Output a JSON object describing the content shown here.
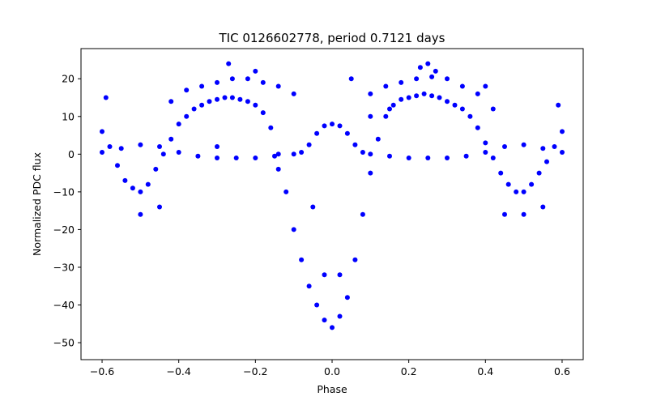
{
  "chart_data": {
    "type": "scatter",
    "title": "TIC 0126602778, period 0.7121 days",
    "xlabel": "Phase",
    "ylabel": "Normalized PDC flux",
    "xlim": [
      -0.655,
      0.655
    ],
    "ylim": [
      -54.5,
      28
    ],
    "xticks": [
      -0.6,
      -0.4,
      -0.2,
      0.0,
      0.2,
      0.4,
      0.6
    ],
    "xtick_labels": [
      "−0.6",
      "−0.4",
      "−0.2",
      "0.0",
      "0.2",
      "0.4",
      "0.6"
    ],
    "yticks": [
      20,
      10,
      0,
      -10,
      -20,
      -30,
      -40,
      -50
    ],
    "ytick_labels": [
      "20",
      "10",
      "0",
      "−10",
      "−20",
      "−30",
      "−40",
      "−50"
    ],
    "grid": false,
    "marker_color": "#0000ff",
    "series": [
      {
        "name": "",
        "x": [
          -0.6,
          -0.58,
          -0.56,
          -0.54,
          -0.52,
          -0.5,
          -0.48,
          -0.46,
          -0.44,
          -0.42,
          -0.4,
          -0.38,
          -0.36,
          -0.34,
          -0.32,
          -0.3,
          -0.28,
          -0.26,
          -0.24,
          -0.22,
          -0.2,
          -0.18,
          -0.16,
          -0.14,
          -0.12,
          -0.1,
          -0.08,
          -0.06,
          -0.04,
          -0.02,
          0.0,
          0.02,
          0.04,
          0.06,
          0.08,
          0.1,
          0.12,
          0.14,
          0.16,
          0.18,
          0.2,
          0.22,
          0.24,
          0.26,
          0.28,
          0.3,
          0.32,
          0.34,
          0.36,
          0.38,
          0.4,
          0.42,
          0.44,
          0.46,
          0.48,
          0.5,
          0.52,
          0.54,
          0.56,
          0.58,
          0.6
        ],
        "y": [
          6,
          2,
          -3,
          -7,
          -9,
          -10,
          -8,
          -4,
          0,
          4,
          8,
          10,
          12,
          13,
          14,
          14.5,
          15,
          15,
          14.5,
          14,
          13,
          11,
          7,
          0,
          -10,
          -20,
          -28,
          -35,
          -40,
          -44,
          -46,
          -43,
          -38,
          -28,
          -16,
          -5,
          4,
          10,
          13,
          14.5,
          15,
          15.5,
          16,
          15.5,
          15,
          14,
          13,
          12,
          10,
          7,
          3,
          -1,
          -5,
          -8,
          -10,
          -10,
          -8,
          -5,
          -2,
          2,
          6
        ]
      },
      {
        "name": "",
        "x": [
          -0.6,
          -0.55,
          -0.5,
          -0.45,
          -0.4,
          -0.35,
          -0.3,
          -0.25,
          -0.2,
          -0.15,
          -0.1,
          -0.08,
          -0.06,
          -0.04,
          -0.02,
          0.0,
          0.02,
          0.04,
          0.06,
          0.08,
          0.1,
          0.15,
          0.2,
          0.25,
          0.3,
          0.35,
          0.4,
          0.45,
          0.5,
          0.55,
          0.6
        ],
        "y": [
          0.5,
          1.5,
          2.5,
          2,
          0.5,
          -0.5,
          -1,
          -1,
          -1,
          -0.5,
          0,
          0.5,
          2.5,
          5.5,
          7.5,
          8,
          7.5,
          5.5,
          2.5,
          0.5,
          0,
          -0.5,
          -1,
          -1,
          -1,
          -0.5,
          0.5,
          2,
          2.5,
          1.5,
          0.5
        ]
      },
      {
        "name": "",
        "x": [
          -0.42,
          -0.38,
          -0.34,
          -0.3,
          -0.26,
          -0.22,
          -0.18,
          -0.14,
          -0.1,
          0.1,
          0.14,
          0.18,
          0.22,
          0.26,
          0.3,
          0.34,
          0.38,
          0.42
        ],
        "y": [
          14,
          17,
          18,
          19,
          20,
          20,
          19,
          18,
          16,
          16,
          18,
          19,
          20,
          20.5,
          20,
          18,
          16,
          12
        ]
      },
      {
        "name": "",
        "x": [
          -0.59,
          -0.5,
          -0.45,
          -0.3,
          -0.27,
          -0.2,
          -0.14,
          -0.05,
          -0.02,
          0.02,
          0.05,
          0.1,
          0.15,
          0.23,
          0.25,
          0.27,
          0.4,
          0.45,
          0.5,
          0.55,
          0.59
        ],
        "y": [
          15,
          -16,
          -14,
          2,
          24,
          22,
          -4,
          -14,
          -32,
          -32,
          20,
          10,
          12,
          23,
          24,
          22,
          18,
          -16,
          -16,
          -14,
          13
        ]
      }
    ]
  }
}
